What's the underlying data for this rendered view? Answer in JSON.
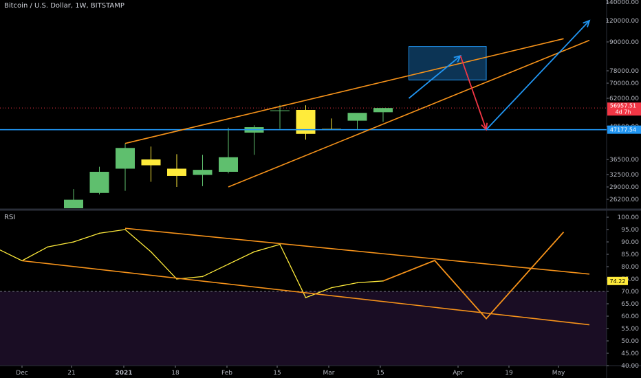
{
  "header": {
    "symbol_title": "Bitcoin / U.S. Dollar, 1W, BITSTAMP"
  },
  "colors": {
    "background": "#000000",
    "up_candle": "#5fbf6e",
    "down_candle": "#ffeb3b",
    "channel": "#f7931a",
    "support_line": "#2196f3",
    "arrow_blue": "#2196f3",
    "arrow_red": "#f23645",
    "price_label": "#f23645",
    "support_label": "#2196f3",
    "rsi_line": "#ffeb3b",
    "rsi_projection": "#f7931a",
    "rsi_zone": "#1a0d24"
  },
  "price_axis": {
    "ticks": [
      "140000.00",
      "120000.00",
      "90000.00",
      "78000.00",
      "70000.00",
      "62000.00",
      "48500.00",
      "36500.00",
      "32500.00",
      "29000.00",
      "26200.00"
    ],
    "current_price": "56957.51",
    "countdown": "4d 7h",
    "support_price": "47177.54"
  },
  "time_axis": {
    "ticks": [
      "Dec",
      "21",
      "2021",
      "18",
      "Feb",
      "15",
      "Mar",
      "15",
      "Apr",
      "19",
      "May"
    ]
  },
  "rsi_panel": {
    "label": "RSI",
    "current_value": "74.22",
    "ticks": [
      "100.00",
      "95.00",
      "90.00",
      "85.00",
      "80.00",
      "75.00",
      "70.00",
      "65.00",
      "60.00",
      "55.00",
      "50.00",
      "45.00",
      "40.00"
    ]
  },
  "chart_data": [
    {
      "type": "candlestick",
      "title": "Bitcoin / U.S. Dollar, 1W, BITSTAMP",
      "x": [
        "2020-11-23",
        "2020-11-30",
        "2020-12-07",
        "2020-12-14",
        "2020-12-21",
        "2020-12-28",
        "2021-01-04",
        "2021-01-11",
        "2021-01-18",
        "2021-01-25",
        "2021-02-01",
        "2021-02-08",
        "2021-02-15",
        "2021-02-22",
        "2021-03-01",
        "2021-03-08"
      ],
      "open": [
        18400,
        19300,
        19200,
        23200,
        27600,
        34000,
        36500,
        34000,
        32400,
        33200,
        46000,
        55500,
        56000,
        47500,
        51000,
        54900
      ],
      "high": [
        19500,
        19400,
        23800,
        28500,
        34500,
        41900,
        40800,
        38200,
        38000,
        48000,
        49000,
        58500,
        58300,
        52000,
        53500,
        56957.51
      ],
      "low": [
        17500,
        18000,
        18100,
        22800,
        27300,
        28100,
        30400,
        29000,
        29200,
        32800,
        38000,
        47500,
        43300,
        47000,
        47400,
        50500
      ],
      "close": [
        19300,
        19200,
        23200,
        26100,
        33200,
        40300,
        34900,
        32100,
        33700,
        37200,
        48200,
        55800,
        45500,
        47300,
        54600,
        56957.51
      ],
      "ylim": [
        16000,
        140000
      ],
      "current_price": 56957.51,
      "support_level": 47177.54,
      "projected_path": [
        {
          "x": "2021-03-15",
          "y": 62000
        },
        {
          "x": "2021-03-29",
          "y": 84000
        },
        {
          "x": "2021-04-05",
          "y": 47177.54
        },
        {
          "x": "2021-05-03",
          "y": 120000
        }
      ],
      "target_zone": {
        "x": [
          "2021-03-15",
          "2021-04-05"
        ],
        "y": [
          72000,
          88000
        ]
      }
    },
    {
      "type": "line",
      "title": "RSI",
      "x": [
        "2020-11-23",
        "2020-11-30",
        "2020-12-07",
        "2020-12-14",
        "2020-12-21",
        "2020-12-28",
        "2021-01-04",
        "2021-01-11",
        "2021-01-18",
        "2021-01-25",
        "2021-02-01",
        "2021-02-08",
        "2021-02-15",
        "2021-02-22",
        "2021-03-01",
        "2021-03-08"
      ],
      "values": [
        87.5,
        82.4,
        88.0,
        90.0,
        93.5,
        95.0,
        86.0,
        75.0,
        76.0,
        81.0,
        86.0,
        89.0,
        67.5,
        71.5,
        73.5,
        74.22
      ],
      "ylim": [
        40,
        100
      ],
      "projection": [
        {
          "x": "2021-03-08",
          "y": 74.22
        },
        {
          "x": "2021-03-22",
          "y": 82.5
        },
        {
          "x": "2021-04-05",
          "y": 59
        },
        {
          "x": "2021-04-26",
          "y": 94
        }
      ]
    }
  ]
}
